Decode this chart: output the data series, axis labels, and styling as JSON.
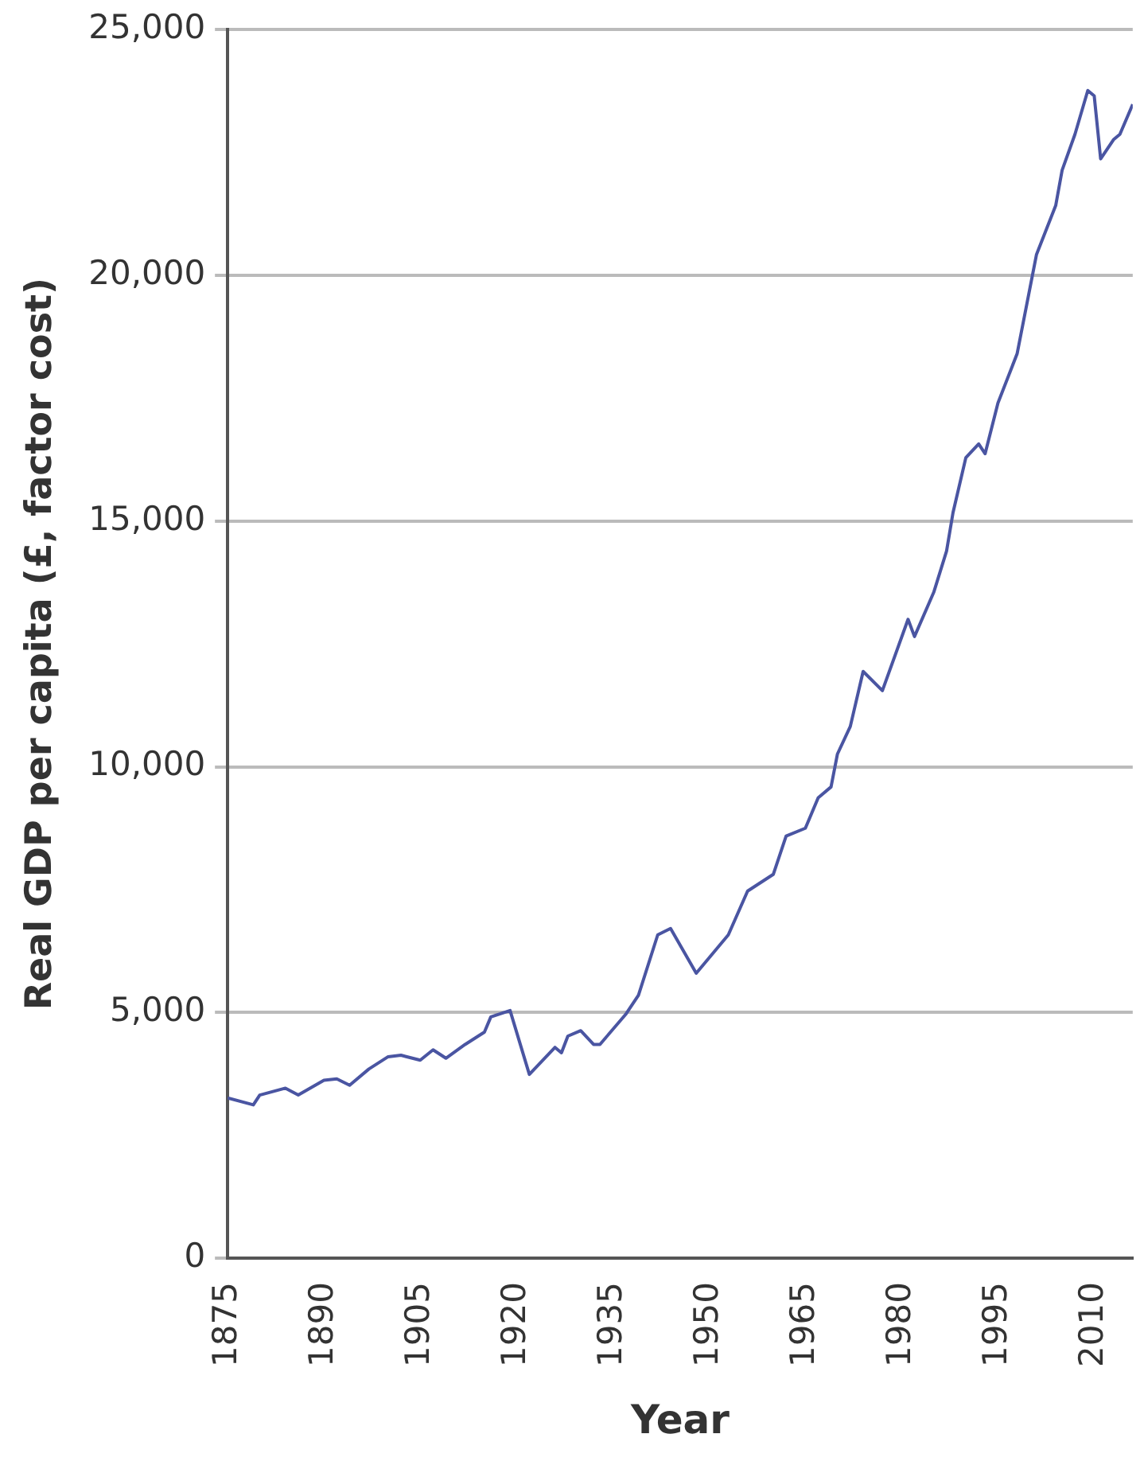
{
  "chart_data": {
    "type": "line",
    "xlabel": "Year",
    "ylabel": "Real GDP per capita (£, factor cost)",
    "x": [
      1875,
      1879,
      1880,
      1884,
      1886,
      1890,
      1892,
      1894,
      1897,
      1900,
      1902,
      1905,
      1907,
      1909,
      1912,
      1915,
      1916,
      1919,
      1922,
      1926,
      1927,
      1928,
      1930,
      1932,
      1933,
      1937,
      1939,
      1942,
      1944,
      1948,
      1953,
      1956,
      1960,
      1962,
      1965,
      1967,
      1969,
      1970,
      1972,
      1974,
      1977,
      1981,
      1982,
      1985,
      1987,
      1988,
      1990,
      1992,
      1993,
      1995,
      1998,
      2001,
      2004,
      2005,
      2007,
      2009,
      2010,
      2011,
      2013,
      2014,
      2016
    ],
    "series": [
      {
        "color": "#4a55a2",
        "values": [
          3260,
          3120,
          3320,
          3460,
          3320,
          3620,
          3650,
          3520,
          3850,
          4100,
          4130,
          4030,
          4240,
          4070,
          4350,
          4600,
          4910,
          5040,
          3740,
          4290,
          4180,
          4520,
          4630,
          4350,
          4350,
          4960,
          5350,
          6580,
          6710,
          5800,
          6580,
          7470,
          7810,
          8590,
          8750,
          9370,
          9590,
          10260,
          10820,
          11940,
          11550,
          13000,
          12650,
          13550,
          14390,
          15170,
          16290,
          16570,
          16370,
          17400,
          18410,
          20420,
          21420,
          22140,
          22870,
          23760,
          23650,
          22370,
          22760,
          22870,
          23480
        ]
      }
    ],
    "xlim": [
      1875,
      2016
    ],
    "xticks": [
      1875,
      1890,
      1905,
      1920,
      1935,
      1950,
      1965,
      1980,
      1995,
      2010
    ],
    "ylim": [
      0,
      25000
    ],
    "yticks": [
      0,
      {
        "value": 5000,
        "label": "5,000"
      },
      {
        "value": 10000,
        "label": "10,000"
      },
      {
        "value": 15000,
        "label": "15,000"
      },
      {
        "value": 20000,
        "label": "20,000"
      },
      {
        "value": 25000,
        "label": "25,000"
      }
    ],
    "grid": "y",
    "marker": "none",
    "line_style": "solid",
    "legend": false
  }
}
